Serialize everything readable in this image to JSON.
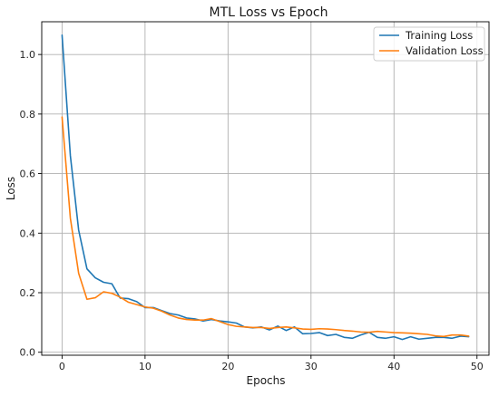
{
  "chart_data": {
    "type": "line",
    "title": "MTL Loss vs Epoch",
    "xlabel": "Epochs",
    "ylabel": "Loss",
    "xlim": [
      -2.45,
      51.45
    ],
    "ylim": [
      -0.01,
      1.11
    ],
    "xticks": [
      0,
      10,
      20,
      30,
      40,
      50
    ],
    "yticks": [
      0.0,
      0.2,
      0.4,
      0.6,
      0.8,
      1.0
    ],
    "xtick_labels": [
      "0",
      "10",
      "20",
      "30",
      "40",
      "50"
    ],
    "ytick_labels": [
      "0.0",
      "0.2",
      "0.4",
      "0.6",
      "0.8",
      "1.0"
    ],
    "grid": true,
    "legend_position": "top-right",
    "x": [
      0,
      1,
      2,
      3,
      4,
      5,
      6,
      7,
      8,
      9,
      10,
      11,
      12,
      13,
      14,
      15,
      16,
      17,
      18,
      19,
      20,
      21,
      22,
      23,
      24,
      25,
      26,
      27,
      28,
      29,
      30,
      31,
      32,
      33,
      34,
      35,
      36,
      37,
      38,
      39,
      40,
      41,
      42,
      43,
      44,
      45,
      46,
      47,
      48,
      49
    ],
    "series": [
      {
        "name": "Training Loss",
        "color": "#1f77b4",
        "values": [
          1.065,
          0.66,
          0.41,
          0.28,
          0.25,
          0.235,
          0.23,
          0.182,
          0.18,
          0.17,
          0.15,
          0.15,
          0.14,
          0.13,
          0.125,
          0.115,
          0.112,
          0.105,
          0.11,
          0.105,
          0.102,
          0.098,
          0.085,
          0.082,
          0.085,
          0.075,
          0.088,
          0.073,
          0.085,
          0.062,
          0.063,
          0.066,
          0.056,
          0.06,
          0.05,
          0.047,
          0.058,
          0.067,
          0.05,
          0.047,
          0.052,
          0.043,
          0.052,
          0.044,
          0.047,
          0.05,
          0.05,
          0.047,
          0.054,
          0.052
        ]
      },
      {
        "name": "Validation Loss",
        "color": "#ff7f0e",
        "values": [
          0.79,
          0.45,
          0.265,
          0.178,
          0.183,
          0.203,
          0.198,
          0.185,
          0.168,
          0.16,
          0.152,
          0.148,
          0.138,
          0.125,
          0.115,
          0.11,
          0.108,
          0.108,
          0.113,
          0.103,
          0.093,
          0.087,
          0.085,
          0.083,
          0.083,
          0.08,
          0.083,
          0.085,
          0.082,
          0.078,
          0.077,
          0.079,
          0.078,
          0.076,
          0.073,
          0.071,
          0.068,
          0.067,
          0.07,
          0.068,
          0.066,
          0.065,
          0.064,
          0.062,
          0.06,
          0.055,
          0.053,
          0.058,
          0.058,
          0.054
        ]
      }
    ]
  }
}
